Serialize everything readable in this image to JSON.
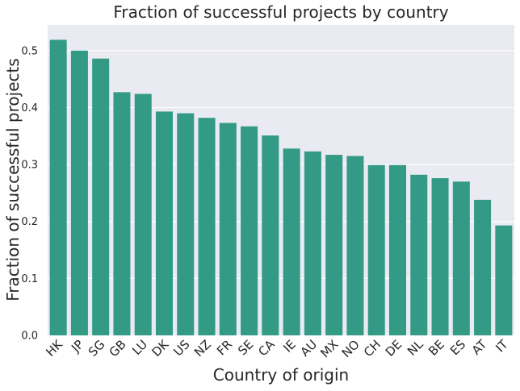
{
  "chart_data": {
    "type": "bar",
    "title": "Fraction of successful projects by country",
    "xlabel": "Country of origin",
    "ylabel": "Fraction of successful projects",
    "categories": [
      "HK",
      "JP",
      "SG",
      "GB",
      "LU",
      "DK",
      "US",
      "NZ",
      "FR",
      "SE",
      "CA",
      "IE",
      "AU",
      "MX",
      "NO",
      "CH",
      "DE",
      "NL",
      "BE",
      "ES",
      "AT",
      "IT"
    ],
    "values": [
      0.519,
      0.5,
      0.486,
      0.427,
      0.424,
      0.393,
      0.39,
      0.382,
      0.373,
      0.367,
      0.351,
      0.328,
      0.323,
      0.317,
      0.315,
      0.299,
      0.299,
      0.282,
      0.276,
      0.27,
      0.238,
      0.193
    ],
    "yticks": [
      "0.0",
      "0.1",
      "0.2",
      "0.3",
      "0.4",
      "0.5"
    ],
    "ylim": [
      0,
      0.545
    ],
    "grid": true,
    "colors": {
      "bar": "#339a85",
      "plot_background": "#eaeaf2",
      "grid": "#ffffff"
    }
  }
}
